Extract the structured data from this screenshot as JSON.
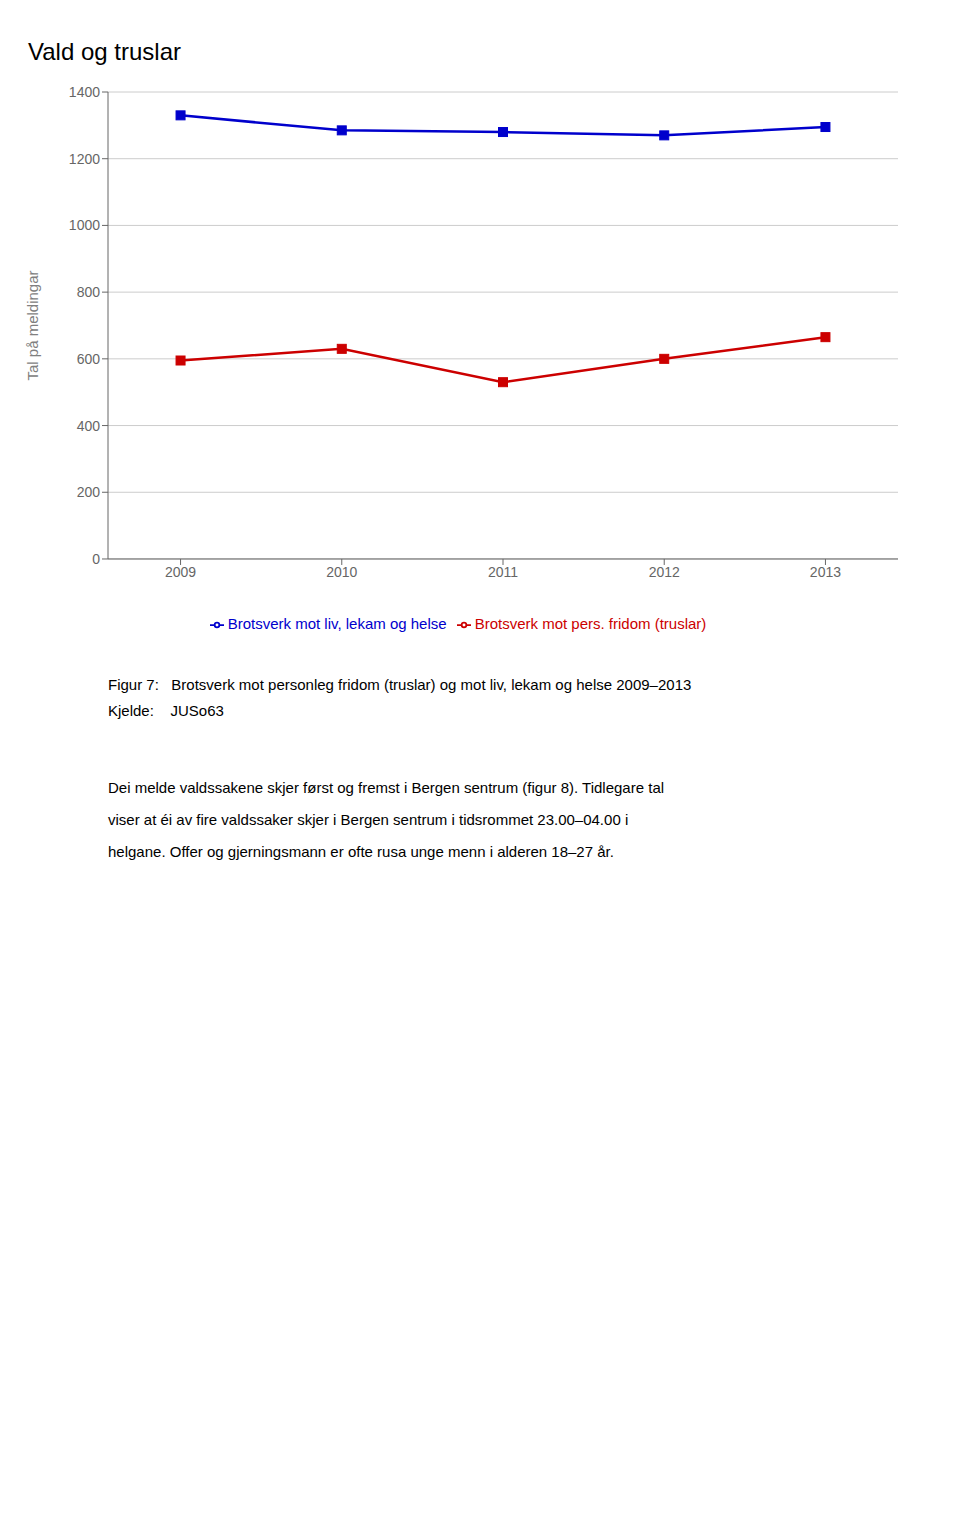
{
  "chart_data": {
    "type": "line",
    "title": "Vald og truslar",
    "ylabel": "Tal på meldingar",
    "x": [
      2009,
      2010,
      2011,
      2012,
      2013
    ],
    "series": [
      {
        "name": "Brotsverk mot liv, lekam og helse",
        "color": "#0000CC",
        "marker": "square",
        "values": [
          1330,
          1285,
          1280,
          1270,
          1295
        ]
      },
      {
        "name": "Brotsverk mot pers. fridom (truslar)",
        "color": "#CC0000",
        "marker": "square",
        "values": [
          595,
          630,
          530,
          600,
          665
        ]
      }
    ],
    "xlim": [
      2008.55,
      2013.45
    ],
    "xticks": [
      2009,
      2010,
      2011,
      2012,
      2013
    ],
    "ylim": [
      0,
      1400
    ],
    "yticks": [
      0,
      200,
      400,
      600,
      800,
      1000,
      1200,
      1400
    ],
    "grid": true,
    "legend": "bottom",
    "annotations": [
      "Figur 7:   Brotsverk mot personleg fridom (truslar) og mot liv, lekam og helse 2009–2013",
      "Kjelde:    JUSo63",
      "Dei melde valdssakene skjer først og fremst i Bergen sentrum (figur 8). Tidlegare tal",
      "viser at éi av fire valdssaker skjer i Bergen sentrum i tidsrommet 23.00–04.00 i",
      "helgane. Offer og gjerningsmann er ofte rusa unge menn i alderen 18–27 år."
    ]
  }
}
